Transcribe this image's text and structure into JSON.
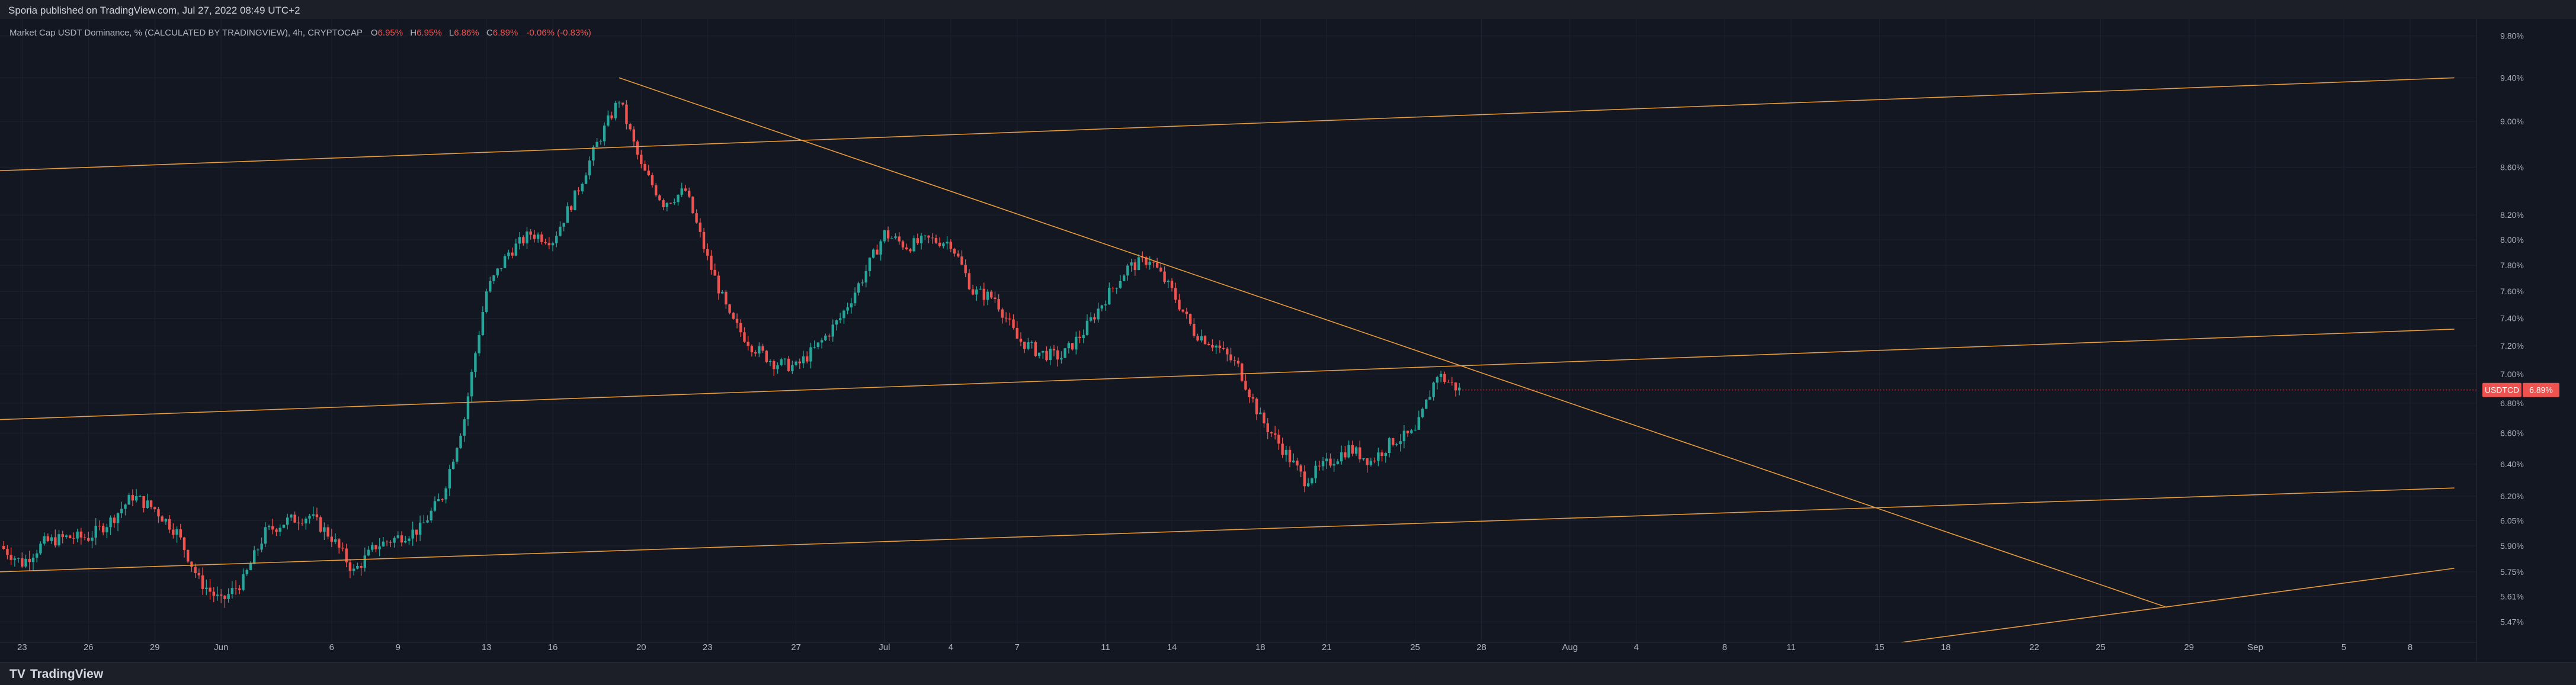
{
  "publish_line": "Sporia published on TradingView.com, Jul 27, 2022 08:49 UTC+2",
  "brand": {
    "logo": "TV",
    "name": "TradingView"
  },
  "legend": {
    "title": "Market Cap USDT Dominance, % (CALCULATED BY TRADINGVIEW), 4h, CRYPTOCAP",
    "o_label": "O",
    "o_value": "6.95%",
    "h_label": "H",
    "h_value": "6.95%",
    "l_label": "L",
    "l_value": "6.86%",
    "c_label": "C",
    "c_value": "6.89%",
    "change": "-0.06% (-0.83%)"
  },
  "price_tag": {
    "symbol": "USDTCD",
    "value": "6.89%"
  },
  "colors": {
    "background": "#131722",
    "grid": "#1e2230",
    "up": "#26a69a",
    "down": "#ef5350",
    "trendline": "#e89b3a",
    "axis_text": "#b2b5be"
  },
  "chart_data": {
    "type": "candlestick",
    "y_axis": {
      "scale": "log",
      "range": [
        5.36,
        9.92
      ],
      "tick_labels": [
        "9.80%",
        "9.40%",
        "9.00%",
        "8.60%",
        "8.20%",
        "8.00%",
        "7.80%",
        "7.60%",
        "7.40%",
        "7.20%",
        "7.00%",
        "6.80%",
        "6.60%",
        "6.40%",
        "6.20%",
        "6.05%",
        "5.90%",
        "5.75%",
        "5.61%",
        "5.47%"
      ],
      "tick_values": [
        9.8,
        9.4,
        9.0,
        8.6,
        8.2,
        8.0,
        7.8,
        7.6,
        7.4,
        7.2,
        7.0,
        6.8,
        6.6,
        6.4,
        6.2,
        6.05,
        5.9,
        5.75,
        5.61,
        5.47
      ]
    },
    "x_axis": {
      "labels": [
        "23",
        "26",
        "29",
        "Jun",
        "6",
        "9",
        "13",
        "16",
        "20",
        "23",
        "27",
        "Jul",
        "4",
        "7",
        "11",
        "14",
        "18",
        "21",
        "25",
        "28",
        "Aug",
        "4",
        "8",
        "11",
        "15",
        "18",
        "22",
        "25",
        "29",
        "Sep",
        "5",
        "8"
      ],
      "dates": [
        "2022-05-23",
        "2022-05-26",
        "2022-05-29",
        "2022-06-01",
        "2022-06-06",
        "2022-06-09",
        "2022-06-13",
        "2022-06-16",
        "2022-06-20",
        "2022-06-23",
        "2022-06-27",
        "2022-07-01",
        "2022-07-04",
        "2022-07-07",
        "2022-07-11",
        "2022-07-14",
        "2022-07-18",
        "2022-07-21",
        "2022-07-25",
        "2022-07-28",
        "2022-08-01",
        "2022-08-04",
        "2022-08-08",
        "2022-08-11",
        "2022-08-15",
        "2022-08-18",
        "2022-08-22",
        "2022-08-25",
        "2022-08-29",
        "2022-09-01",
        "2022-09-05",
        "2022-09-08"
      ],
      "range": [
        "2022-05-22",
        "2022-09-11"
      ]
    },
    "grid": true,
    "close_path": [
      [
        "2022-05-22",
        5.9
      ],
      [
        "2022-05-23",
        5.8
      ],
      [
        "2022-05-24",
        5.92
      ],
      [
        "2022-05-25",
        5.95
      ],
      [
        "2022-05-26",
        5.95
      ],
      [
        "2022-05-27",
        6.05
      ],
      [
        "2022-05-28",
        6.2
      ],
      [
        "2022-05-29",
        6.12
      ],
      [
        "2022-05-30",
        5.98
      ],
      [
        "2022-05-31",
        5.7
      ],
      [
        "2022-06-01",
        5.58
      ],
      [
        "2022-06-02",
        5.7
      ],
      [
        "2022-06-03",
        5.98
      ],
      [
        "2022-06-04",
        6.05
      ],
      [
        "2022-06-05",
        6.08
      ],
      [
        "2022-06-06",
        5.95
      ],
      [
        "2022-06-07",
        5.75
      ],
      [
        "2022-06-08",
        5.9
      ],
      [
        "2022-06-09",
        5.95
      ],
      [
        "2022-06-10",
        6.0
      ],
      [
        "2022-06-11",
        6.2
      ],
      [
        "2022-06-12",
        6.7
      ],
      [
        "2022-06-13",
        7.6
      ],
      [
        "2022-06-14",
        7.9
      ],
      [
        "2022-06-15",
        8.05
      ],
      [
        "2022-06-16",
        8.0
      ],
      [
        "2022-06-17",
        8.35
      ],
      [
        "2022-06-18",
        8.8
      ],
      [
        "2022-06-19",
        9.2
      ],
      [
        "2022-06-20",
        8.6
      ],
      [
        "2022-06-21",
        8.3
      ],
      [
        "2022-06-22",
        8.4
      ],
      [
        "2022-06-23",
        7.85
      ],
      [
        "2022-06-24",
        7.4
      ],
      [
        "2022-06-25",
        7.2
      ],
      [
        "2022-06-26",
        7.08
      ],
      [
        "2022-06-27",
        7.05
      ],
      [
        "2022-06-28",
        7.2
      ],
      [
        "2022-06-29",
        7.4
      ],
      [
        "2022-06-30",
        7.7
      ],
      [
        "2022-07-01",
        8.05
      ],
      [
        "2022-07-02",
        7.95
      ],
      [
        "2022-07-03",
        8.0
      ],
      [
        "2022-07-04",
        7.98
      ],
      [
        "2022-07-05",
        7.6
      ],
      [
        "2022-07-06",
        7.55
      ],
      [
        "2022-07-07",
        7.25
      ],
      [
        "2022-07-08",
        7.15
      ],
      [
        "2022-07-09",
        7.12
      ],
      [
        "2022-07-10",
        7.3
      ],
      [
        "2022-07-11",
        7.55
      ],
      [
        "2022-07-12",
        7.78
      ],
      [
        "2022-07-13",
        7.85
      ],
      [
        "2022-07-14",
        7.6
      ],
      [
        "2022-07-15",
        7.3
      ],
      [
        "2022-07-16",
        7.2
      ],
      [
        "2022-07-17",
        7.05
      ],
      [
        "2022-07-18",
        6.7
      ],
      [
        "2022-07-19",
        6.5
      ],
      [
        "2022-07-20",
        6.3
      ],
      [
        "2022-07-21",
        6.4
      ],
      [
        "2022-07-22",
        6.5
      ],
      [
        "2022-07-23",
        6.42
      ],
      [
        "2022-07-24",
        6.55
      ],
      [
        "2022-07-25",
        6.6
      ],
      [
        "2022-07-26",
        7.0
      ],
      [
        "2022-07-27",
        6.89
      ]
    ],
    "trend_lines": [
      {
        "from": [
          "2022-05-22",
          8.57
        ],
        "to": [
          "2022-09-10",
          9.4
        ]
      },
      {
        "from": [
          "2022-05-22",
          6.69
        ],
        "to": [
          "2022-09-10",
          7.32
        ]
      },
      {
        "from": [
          "2022-05-22",
          5.75
        ],
        "to": [
          "2022-09-10",
          6.25
        ]
      },
      {
        "from": [
          "2022-06-19",
          9.4
        ],
        "to": [
          "2022-08-28",
          5.55
        ]
      },
      {
        "from": [
          "2022-08-16",
          5.36
        ],
        "to": [
          "2022-09-10",
          5.77
        ]
      }
    ]
  }
}
